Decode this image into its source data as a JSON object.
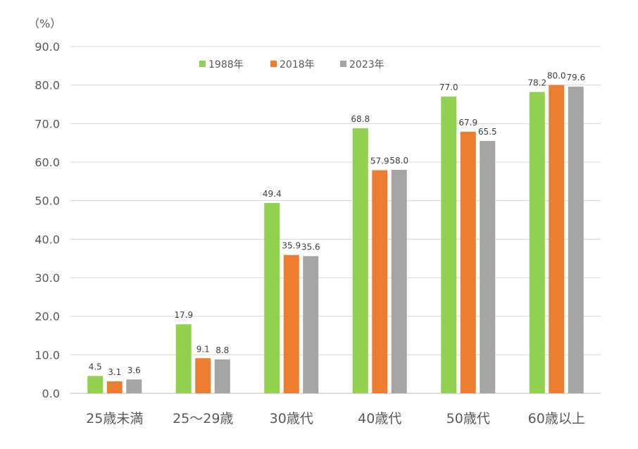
{
  "chart_data": {
    "type": "bar",
    "ylabel": "（%）",
    "ylim": [
      0,
      90
    ],
    "yticks": [
      "0.0",
      "10.0",
      "20.0",
      "30.0",
      "40.0",
      "50.0",
      "60.0",
      "70.0",
      "80.0",
      "90.0"
    ],
    "categories": [
      "25歳未満",
      "25〜29歳",
      "30歳代",
      "40歳代",
      "50歳代",
      "60歳以上"
    ],
    "series": [
      {
        "name": "1988年",
        "color": "#92d050",
        "values": [
          4.5,
          17.9,
          49.4,
          68.8,
          77.0,
          78.2
        ],
        "labels": [
          "4.5",
          "17.9",
          "49.4",
          "68.8",
          "77.0",
          "78.2"
        ]
      },
      {
        "name": "2018年",
        "color": "#ed7d31",
        "values": [
          3.1,
          9.1,
          35.9,
          57.9,
          67.9,
          80.0
        ],
        "labels": [
          "3.1",
          "9.1",
          "35.9",
          "57.9",
          "67.9",
          "80.0"
        ]
      },
      {
        "name": "2023年",
        "color": "#a5a5a5",
        "values": [
          3.6,
          8.8,
          35.6,
          58.0,
          65.5,
          79.6
        ],
        "labels": [
          "3.6",
          "8.8",
          "35.6",
          "58.0",
          "65.5",
          "79.6"
        ]
      }
    ],
    "grid": true,
    "legend_position": "top"
  }
}
